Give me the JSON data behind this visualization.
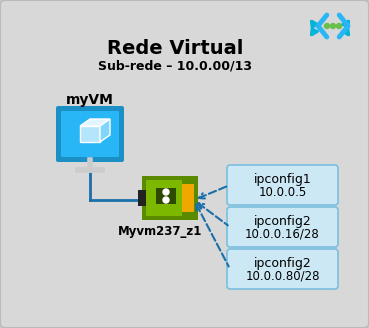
{
  "bg_color": "#d8d8d8",
  "border_color": "#aaaaaa",
  "title": "Rede Virtual",
  "subtitle": "Sub-rede – 10.0.00/13",
  "vm_label": "myVM",
  "nic_label": "Myvm237_z1",
  "ipconfigs": [
    {
      "name": "ipconfig1",
      "ip": "10.0.0.5"
    },
    {
      "name": "ipconfig2",
      "ip": "10.0.0.16/28"
    },
    {
      "name": "ipconfig2",
      "ip": "10.0.0.80/28"
    }
  ],
  "ipconfig_box_color": "#cce8f4",
  "ipconfig_box_edge": "#7abfdf",
  "arrow_color": "#1a6fa8",
  "title_color": "#000000",
  "connect_line_color": "#1a6fa8"
}
